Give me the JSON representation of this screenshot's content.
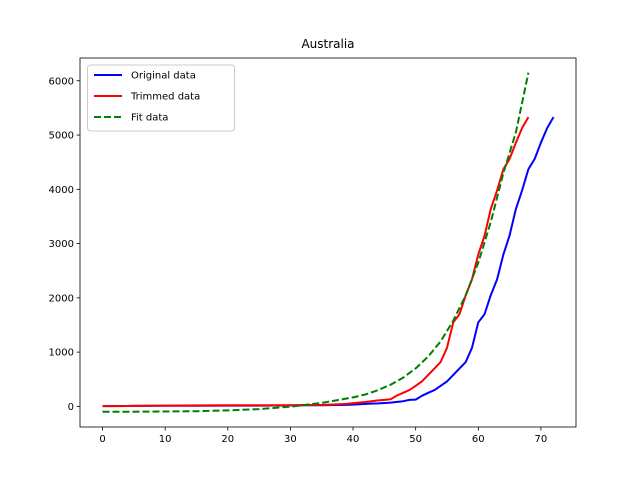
{
  "chart_data": {
    "type": "line",
    "title": "Australia",
    "xlabel": "",
    "ylabel": "",
    "xlim": [
      -3.6,
      75.6
    ],
    "ylim": [
      -380,
      6420
    ],
    "xticks": [
      0,
      10,
      20,
      30,
      40,
      50,
      60,
      70
    ],
    "yticks": [
      0,
      1000,
      2000,
      3000,
      4000,
      5000,
      6000
    ],
    "grid": false,
    "legend_position": "upper-left",
    "series": [
      {
        "name": "Original data",
        "color": "#0000ff",
        "dash": "solid",
        "x": [
          0,
          5,
          10,
          15,
          20,
          25,
          30,
          33,
          35,
          37,
          39,
          40,
          42,
          44,
          46,
          48,
          49,
          50,
          51,
          52,
          53,
          54,
          55,
          56,
          57,
          58,
          59,
          60,
          61,
          62,
          63,
          64,
          65,
          66,
          67,
          68,
          69,
          70,
          71,
          72
        ],
        "y": [
          5,
          8,
          10,
          12,
          14,
          15,
          18,
          20,
          22,
          25,
          28,
          33,
          45,
          55,
          70,
          95,
          120,
          125,
          195,
          250,
          300,
          380,
          460,
          580,
          700,
          820,
          1080,
          1550,
          1700,
          2050,
          2340,
          2800,
          3150,
          3640,
          3980,
          4370,
          4560,
          4860,
          5130,
          5330
        ]
      },
      {
        "name": "Trimmed data",
        "color": "#ff0000",
        "dash": "solid",
        "x": [
          0,
          5,
          10,
          15,
          20,
          25,
          30,
          33,
          35,
          37,
          39,
          40,
          42,
          44,
          45,
          46,
          47,
          48,
          49,
          50,
          51,
          52,
          53,
          54,
          55,
          56,
          57,
          58,
          59,
          60,
          61,
          62,
          63,
          64,
          65,
          66,
          67,
          68
        ],
        "y": [
          5,
          8,
          15,
          18,
          20,
          20,
          22,
          25,
          28,
          35,
          45,
          60,
          80,
          110,
          120,
          130,
          200,
          250,
          300,
          380,
          460,
          580,
          700,
          820,
          1080,
          1550,
          1700,
          2050,
          2340,
          2800,
          3150,
          3640,
          3980,
          4370,
          4560,
          4860,
          5130,
          5330
        ]
      },
      {
        "name": "Fit data",
        "color": "#008000",
        "dash": "dashed",
        "x": [
          0,
          5,
          10,
          15,
          20,
          25,
          30,
          35,
          40,
          42,
          44,
          46,
          48,
          50,
          52,
          54,
          56,
          58,
          60,
          62,
          64,
          66,
          68
        ],
        "y": [
          -100,
          -98,
          -95,
          -88,
          -75,
          -50,
          -5,
          65,
          165,
          220,
          300,
          400,
          530,
          700,
          920,
          1200,
          1580,
          2050,
          2650,
          3400,
          4300,
          5050,
          6150
        ]
      }
    ]
  }
}
